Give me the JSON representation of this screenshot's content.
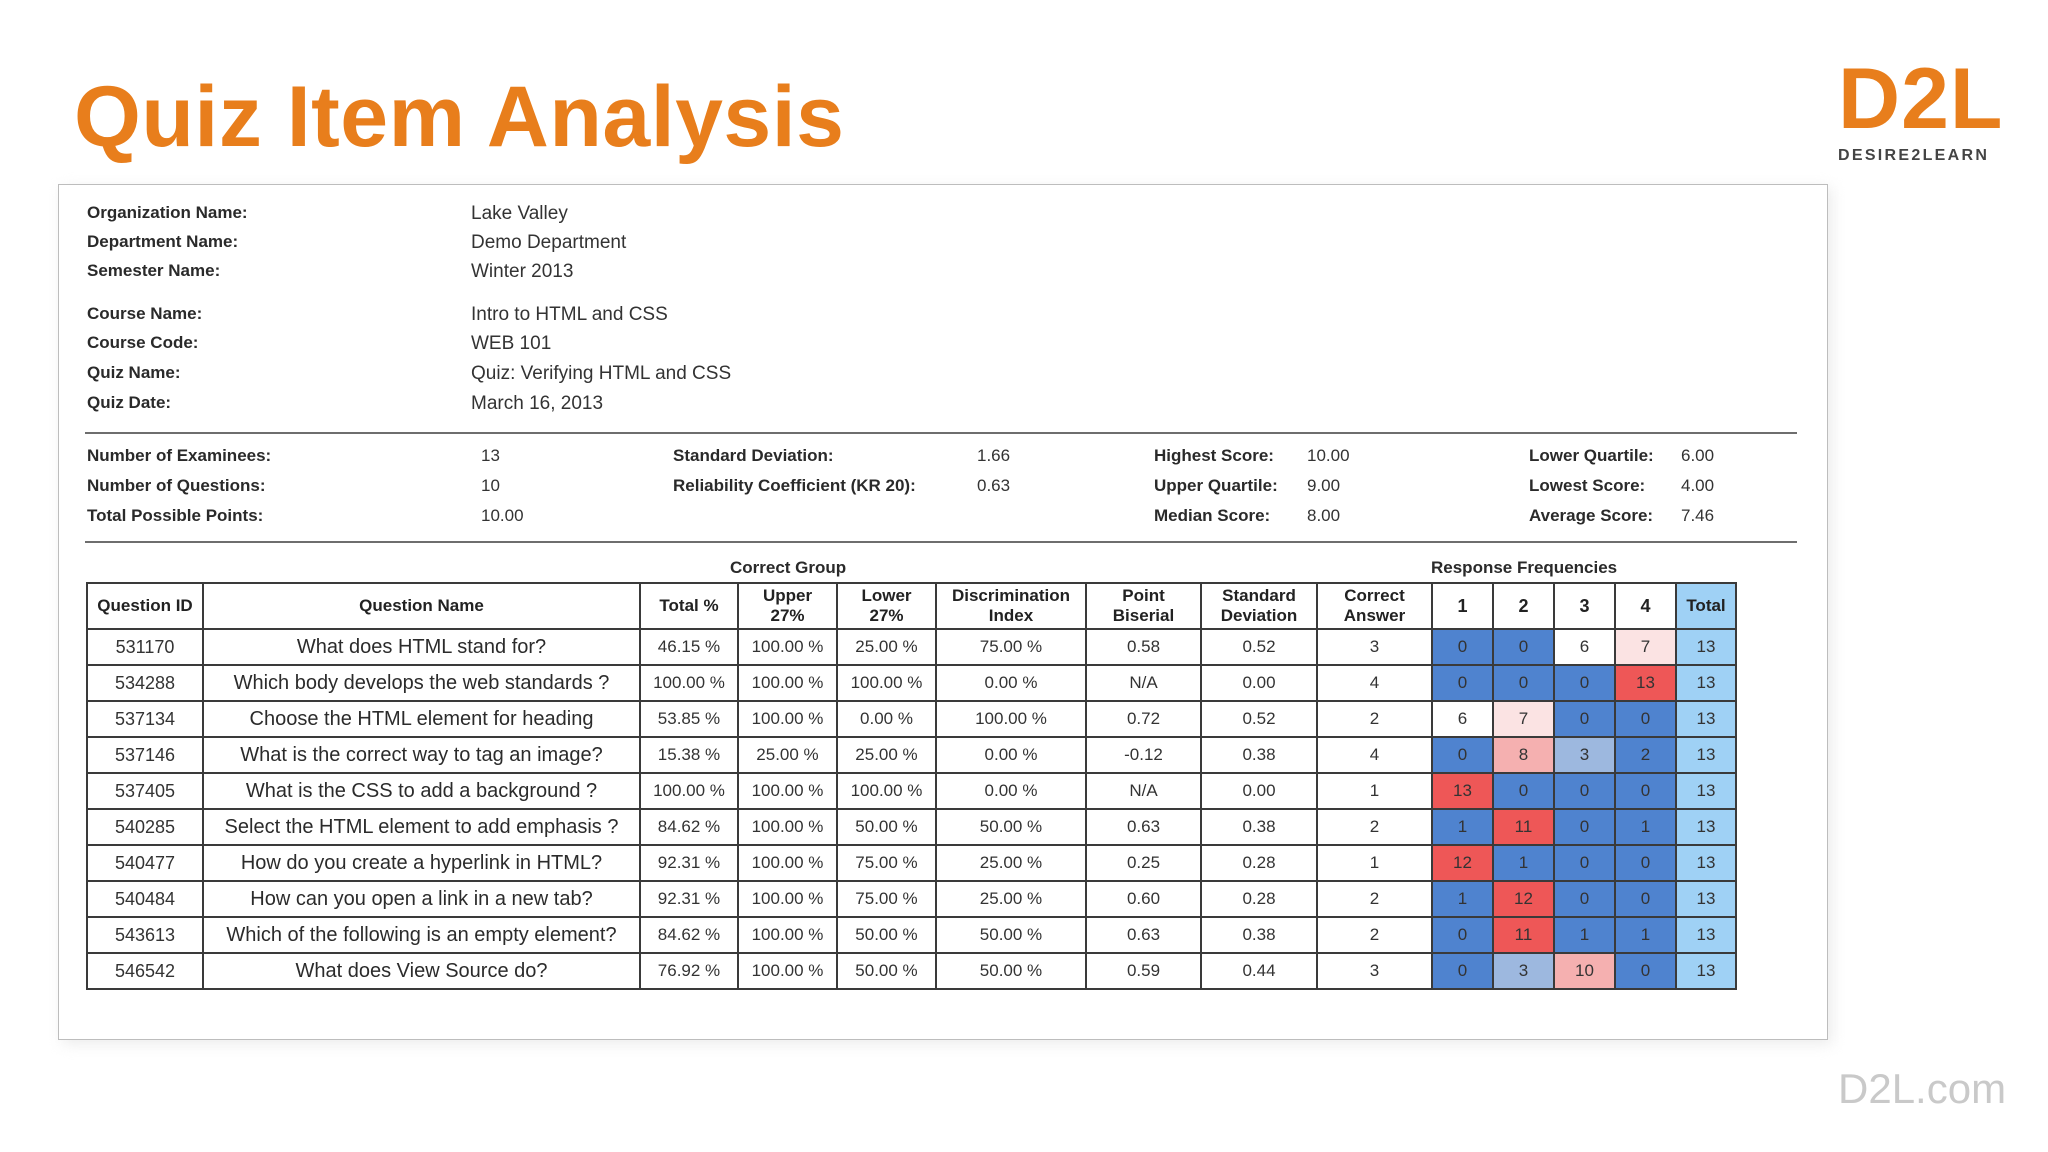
{
  "slide": {
    "title": "Quiz Item Analysis",
    "logo": {
      "mark": "D2L",
      "subtitle": "DESIRE2LEARN"
    },
    "footer_url": "D2L.com"
  },
  "report_info": [
    {
      "label": "Organization Name:",
      "value": "Lake Valley"
    },
    {
      "label": "Department Name:",
      "value": "Demo Department"
    },
    {
      "label": "Semester Name:",
      "value": "Winter 2013"
    },
    {
      "label": "Course Name:",
      "value": "Intro to HTML and CSS"
    },
    {
      "label": "Course Code:",
      "value": "WEB 101"
    },
    {
      "label": "Quiz Name:",
      "value": "Quiz: Verifying HTML and CSS"
    },
    {
      "label": "Quiz Date:",
      "value": "March 16, 2013"
    }
  ],
  "stats": {
    "examinees": {
      "label": "Number of Examinees:",
      "value": "13"
    },
    "questions": {
      "label": "Number of Questions:",
      "value": "10"
    },
    "total_points": {
      "label": "Total Possible Points:",
      "value": "10.00"
    },
    "std_dev": {
      "label": "Standard Deviation:",
      "value": "1.66"
    },
    "kr20": {
      "label": "Reliability Coefficient (KR 20):",
      "value": "0.63"
    },
    "highest": {
      "label": "Highest Score:",
      "value": "10.00"
    },
    "upper_q": {
      "label": "Upper Quartile:",
      "value": "9.00"
    },
    "median": {
      "label": "Median Score:",
      "value": "8.00"
    },
    "lower_q": {
      "label": "Lower Quartile:",
      "value": "6.00"
    },
    "lowest": {
      "label": "Lowest Score:",
      "value": "4.00"
    },
    "average": {
      "label": "Average Score:",
      "value": "7.46"
    }
  },
  "table": {
    "group_labels": {
      "correct_group": "Correct Group",
      "response_frequencies": "Response Frequencies"
    },
    "headers": {
      "question_id": "Question ID",
      "question_name": "Question Name",
      "total_pct": "Total %",
      "upper_27": [
        "Upper",
        "27%"
      ],
      "lower_27": [
        "Lower",
        "27%"
      ],
      "disc_index": [
        "Discrimination",
        "Index"
      ],
      "point_biserial": [
        "Point",
        "Biserial"
      ],
      "std_dev": [
        "Standard",
        "Deviation"
      ],
      "correct_answer": [
        "Correct",
        "Answer"
      ],
      "responses": [
        "1",
        "2",
        "3",
        "4"
      ],
      "total": "Total"
    },
    "colors": {
      "correct_high": "#ee5757",
      "correct_mid": "#f5b0b0",
      "correct_low": "#fbe3e3",
      "distractor_high": "#4f83cf",
      "distractor_mid": "#9db8df",
      "neutral": "#ffffff",
      "total_cell": "#9fd1f5"
    },
    "rows": [
      {
        "id": "531170",
        "name": "What does HTML stand for?",
        "total": "46.15 %",
        "upper": "100.00 %",
        "lower": "25.00 %",
        "disc": "75.00 %",
        "pb": "0.58",
        "sd": "0.52",
        "correct": "3",
        "resp": [
          {
            "v": "0",
            "c": "distractor_high"
          },
          {
            "v": "0",
            "c": "distractor_high"
          },
          {
            "v": "6",
            "c": "neutral"
          },
          {
            "v": "7",
            "c": "correct_low"
          }
        ],
        "resp_total": "13"
      },
      {
        "id": "534288",
        "name": "Which body develops the web standards ?",
        "total": "100.00 %",
        "upper": "100.00 %",
        "lower": "100.00 %",
        "disc": "0.00 %",
        "pb": "N/A",
        "sd": "0.00",
        "correct": "4",
        "resp": [
          {
            "v": "0",
            "c": "distractor_high"
          },
          {
            "v": "0",
            "c": "distractor_high"
          },
          {
            "v": "0",
            "c": "distractor_high"
          },
          {
            "v": "13",
            "c": "correct_high"
          }
        ],
        "resp_total": "13"
      },
      {
        "id": "537134",
        "name": "Choose the HTML element for heading",
        "total": "53.85 %",
        "upper": "100.00 %",
        "lower": "0.00 %",
        "disc": "100.00 %",
        "pb": "0.72",
        "sd": "0.52",
        "correct": "2",
        "resp": [
          {
            "v": "6",
            "c": "neutral"
          },
          {
            "v": "7",
            "c": "correct_low"
          },
          {
            "v": "0",
            "c": "distractor_high"
          },
          {
            "v": "0",
            "c": "distractor_high"
          }
        ],
        "resp_total": "13"
      },
      {
        "id": "537146",
        "name": "What is the correct way to tag an image?",
        "total": "15.38 %",
        "upper": "25.00 %",
        "lower": "25.00 %",
        "disc": "0.00 %",
        "pb": "-0.12",
        "sd": "0.38",
        "correct": "4",
        "resp": [
          {
            "v": "0",
            "c": "distractor_high"
          },
          {
            "v": "8",
            "c": "correct_mid"
          },
          {
            "v": "3",
            "c": "distractor_mid"
          },
          {
            "v": "2",
            "c": "distractor_high"
          }
        ],
        "resp_total": "13"
      },
      {
        "id": "537405",
        "name": "What is the CSS to add a background ?",
        "total": "100.00 %",
        "upper": "100.00 %",
        "lower": "100.00 %",
        "disc": "0.00 %",
        "pb": "N/A",
        "sd": "0.00",
        "correct": "1",
        "resp": [
          {
            "v": "13",
            "c": "correct_high"
          },
          {
            "v": "0",
            "c": "distractor_high"
          },
          {
            "v": "0",
            "c": "distractor_high"
          },
          {
            "v": "0",
            "c": "distractor_high"
          }
        ],
        "resp_total": "13"
      },
      {
        "id": "540285",
        "name": "Select the HTML element to add emphasis ?",
        "total": "84.62 %",
        "upper": "100.00 %",
        "lower": "50.00 %",
        "disc": "50.00 %",
        "pb": "0.63",
        "sd": "0.38",
        "correct": "2",
        "resp": [
          {
            "v": "1",
            "c": "distractor_high"
          },
          {
            "v": "11",
            "c": "correct_high"
          },
          {
            "v": "0",
            "c": "distractor_high"
          },
          {
            "v": "1",
            "c": "distractor_high"
          }
        ],
        "resp_total": "13"
      },
      {
        "id": "540477",
        "name": "How do you create a hyperlink in HTML?",
        "total": "92.31 %",
        "upper": "100.00 %",
        "lower": "75.00 %",
        "disc": "25.00 %",
        "pb": "0.25",
        "sd": "0.28",
        "correct": "1",
        "resp": [
          {
            "v": "12",
            "c": "correct_high"
          },
          {
            "v": "1",
            "c": "distractor_high"
          },
          {
            "v": "0",
            "c": "distractor_high"
          },
          {
            "v": "0",
            "c": "distractor_high"
          }
        ],
        "resp_total": "13"
      },
      {
        "id": "540484",
        "name": "How can you open a link in a new tab?",
        "total": "92.31 %",
        "upper": "100.00 %",
        "lower": "75.00 %",
        "disc": "25.00 %",
        "pb": "0.60",
        "sd": "0.28",
        "correct": "2",
        "resp": [
          {
            "v": "1",
            "c": "distractor_high"
          },
          {
            "v": "12",
            "c": "correct_high"
          },
          {
            "v": "0",
            "c": "distractor_high"
          },
          {
            "v": "0",
            "c": "distractor_high"
          }
        ],
        "resp_total": "13"
      },
      {
        "id": "543613",
        "name": "Which of the following is an empty element?",
        "total": "84.62 %",
        "upper": "100.00 %",
        "lower": "50.00 %",
        "disc": "50.00 %",
        "pb": "0.63",
        "sd": "0.38",
        "correct": "2",
        "resp": [
          {
            "v": "0",
            "c": "distractor_high"
          },
          {
            "v": "11",
            "c": "correct_high"
          },
          {
            "v": "1",
            "c": "distractor_high"
          },
          {
            "v": "1",
            "c": "distractor_high"
          }
        ],
        "resp_total": "13"
      },
      {
        "id": "546542",
        "name": "What does View Source do?",
        "total": "76.92 %",
        "upper": "100.00 %",
        "lower": "50.00 %",
        "disc": "50.00 %",
        "pb": "0.59",
        "sd": "0.44",
        "correct": "3",
        "resp": [
          {
            "v": "0",
            "c": "distractor_high"
          },
          {
            "v": "3",
            "c": "distractor_mid"
          },
          {
            "v": "10",
            "c": "correct_mid"
          },
          {
            "v": "0",
            "c": "distractor_high"
          }
        ],
        "resp_total": "13"
      }
    ]
  }
}
